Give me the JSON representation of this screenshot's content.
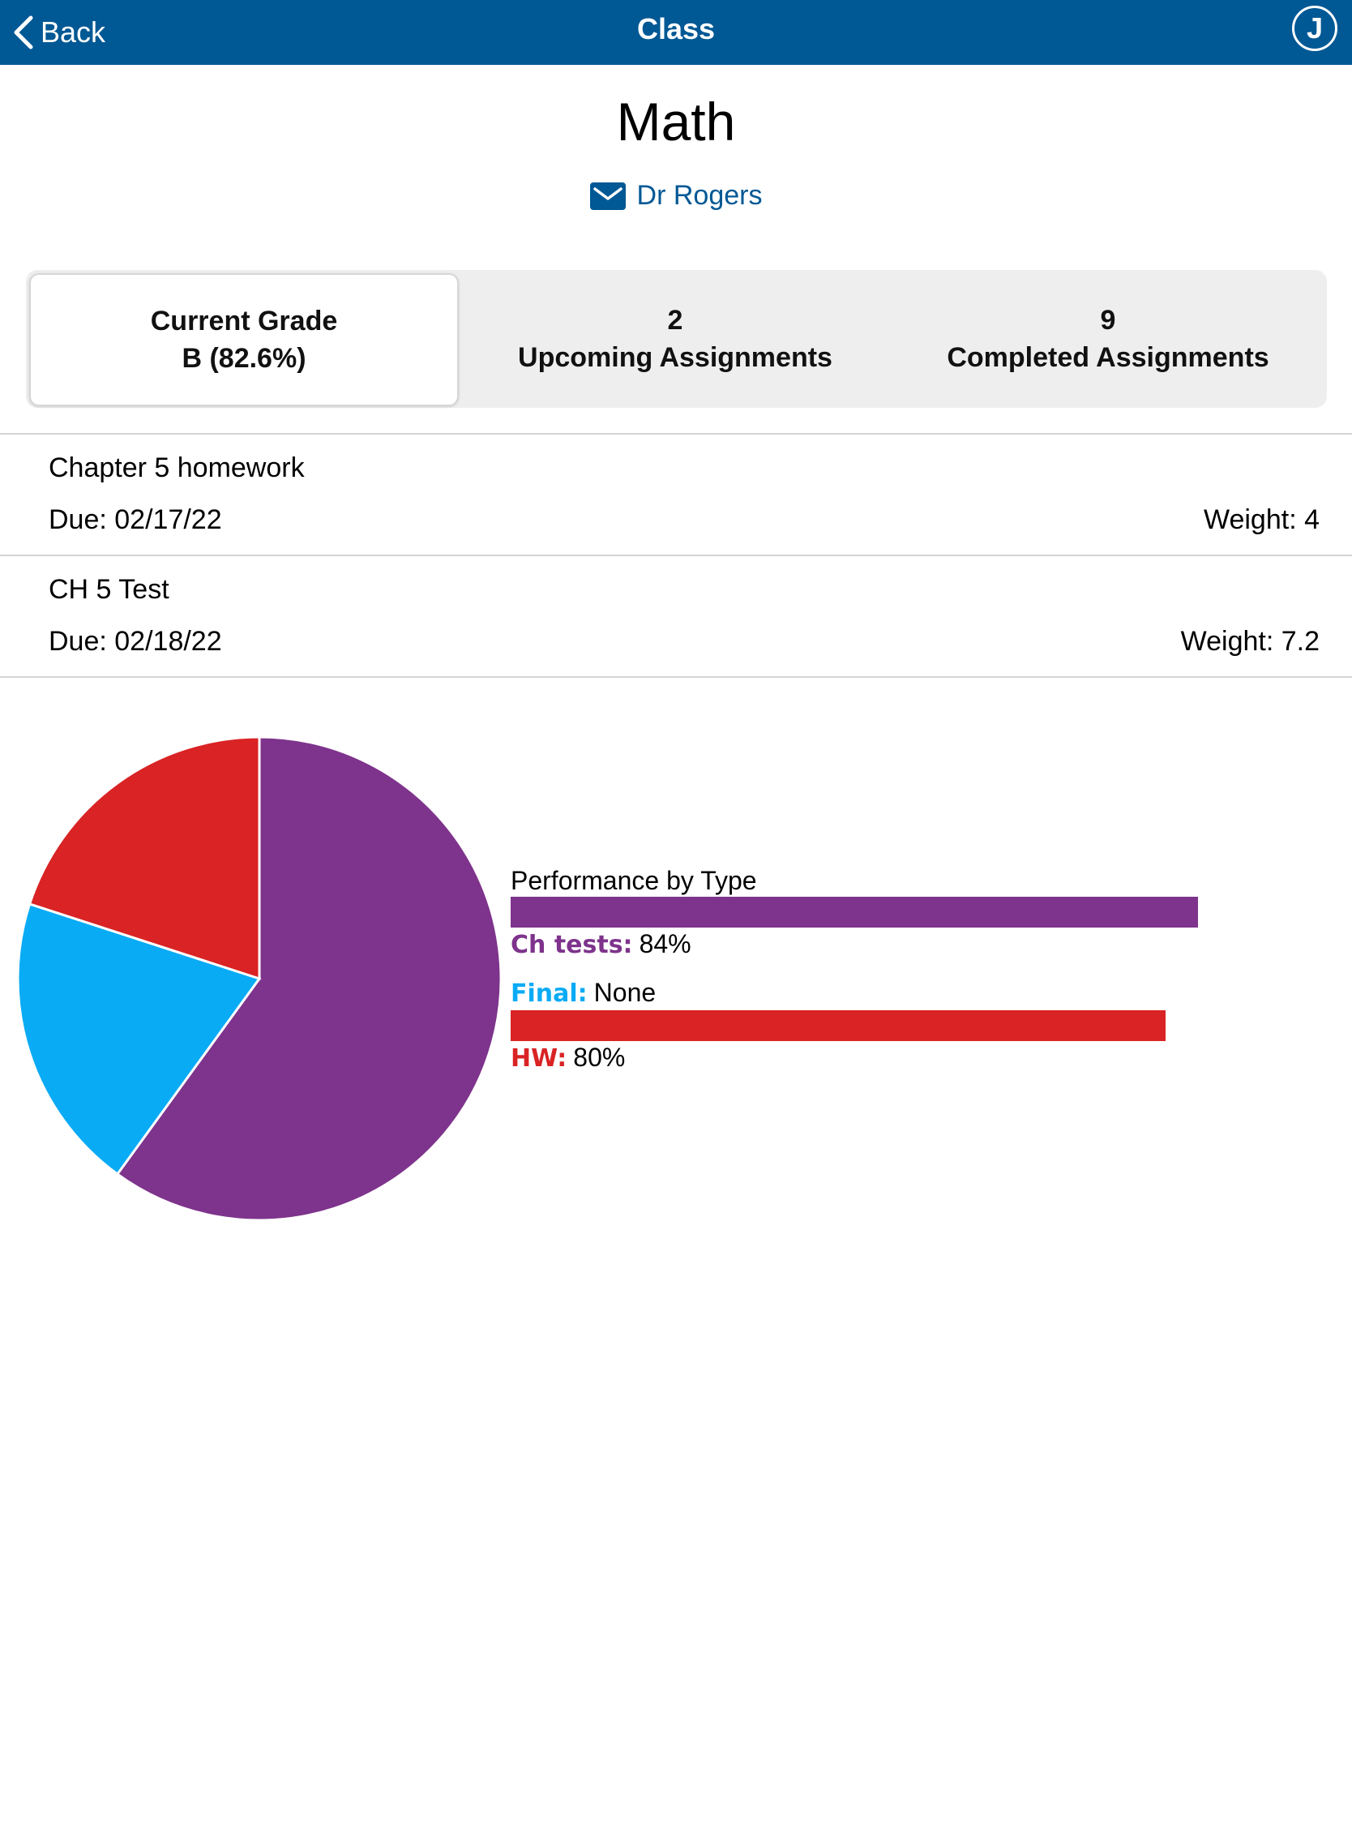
{
  "topbar": {
    "back_label": "Back",
    "title": "Class",
    "avatar_initial": "J"
  },
  "header": {
    "class_name": "Math",
    "teacher": "Dr Rogers"
  },
  "summary": {
    "current_grade_label": "Current Grade",
    "current_grade_value": "B (82.6%)",
    "upcoming_count": "2",
    "upcoming_label": "Upcoming Assignments",
    "completed_count": "9",
    "completed_label": "Completed Assignments"
  },
  "assignments": [
    {
      "name": "Chapter 5 homework",
      "due": "Due: 02/17/22",
      "weight": "Weight: 4"
    },
    {
      "name": "CH 5 Test",
      "due": "Due: 02/18/22",
      "weight": "Weight: 7.2"
    }
  ],
  "colors": {
    "brand": "#005894",
    "ch_tests": "#7e338c",
    "final": "#0aabf5",
    "hw": "#d92324"
  },
  "chart_data": [
    {
      "type": "pie",
      "slices": [
        {
          "name": "Ch tests",
          "value": 60,
          "color": "#7e338c"
        },
        {
          "name": "Final",
          "value": 20,
          "color": "#0aabf5"
        },
        {
          "name": "HW",
          "value": 20,
          "color": "#d92324"
        }
      ]
    },
    {
      "type": "bar",
      "title": "Performance by Type",
      "xlim": [
        0,
        100
      ],
      "series": [
        {
          "name": "Ch tests",
          "label": "Ch tests:",
          "value": 84,
          "display": "84%",
          "color": "#7e338c"
        },
        {
          "name": "Final",
          "label": "Final:",
          "value": null,
          "display": "None",
          "color": "#0aabf5"
        },
        {
          "name": "HW",
          "label": "HW:",
          "value": 80,
          "display": "80%",
          "color": "#d92324"
        }
      ]
    }
  ]
}
